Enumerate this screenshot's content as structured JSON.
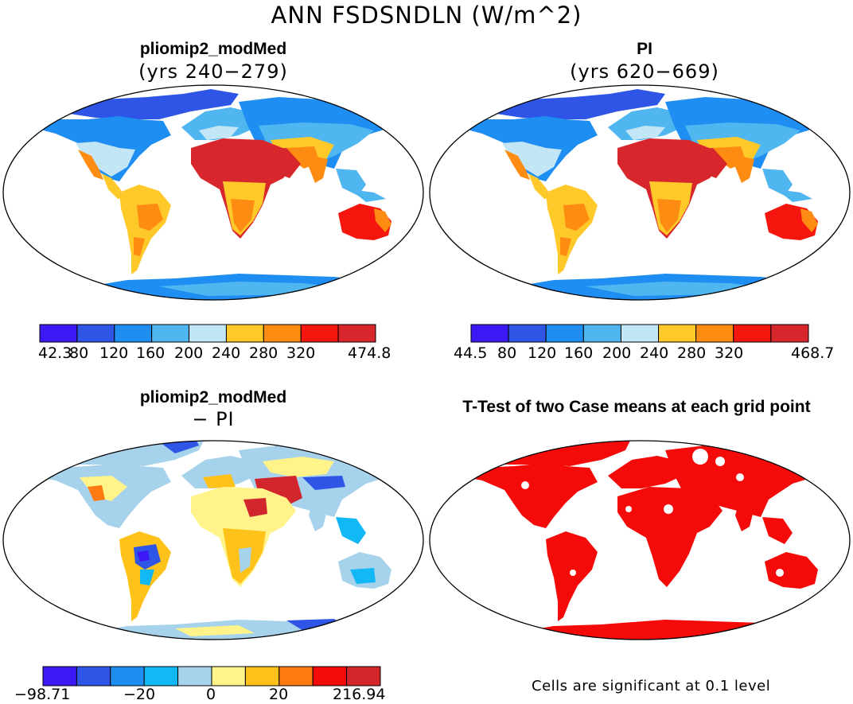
{
  "title": "ANN FSDSNDLN (W/m^2)",
  "panels": [
    {
      "id": "case",
      "title": "pliomip2_modMed",
      "subtitle": "(yrs 240−279)"
    },
    {
      "id": "ref",
      "title": "PI",
      "subtitle": "(yrs 620−669)"
    },
    {
      "id": "diff",
      "title": "pliomip2_modMed",
      "subtitle": "− PI"
    },
    {
      "id": "ttest",
      "title": "T-Test of two Case means at each grid point",
      "subtitle": ""
    }
  ],
  "colorbars": [
    {
      "id": "case",
      "colors": [
        "#3b19f5",
        "#2f55e6",
        "#1f8ef2",
        "#50b6ef",
        "#c2e6f5",
        "#ffc92a",
        "#ff8c12",
        "#f5160e",
        "#d7272c"
      ],
      "labels": [
        "42.3",
        "80",
        "120",
        "160",
        "200",
        "240",
        "280",
        "320",
        "474.8"
      ]
    },
    {
      "id": "ref",
      "colors": [
        "#3b19f5",
        "#2f55e6",
        "#1f8ef2",
        "#50b6ef",
        "#c2e6f5",
        "#ffc92a",
        "#ff8c12",
        "#f5160e",
        "#d7272c"
      ],
      "labels": [
        "44.5",
        "80",
        "120",
        "160",
        "200",
        "240",
        "280",
        "320",
        "468.7"
      ]
    },
    {
      "id": "diff",
      "colors": [
        "#3b19f5",
        "#2f55e6",
        "#1f8ef2",
        "#12b8f5",
        "#a6d2ec",
        "#fff38a",
        "#ffc21a",
        "#ff7a10",
        "#f50a0a",
        "#d1272c"
      ],
      "labels": [
        "−98.71",
        "−20",
        "0",
        "20",
        "216.94"
      ]
    }
  ],
  "note": "Cells are significant at 0.1 level"
}
